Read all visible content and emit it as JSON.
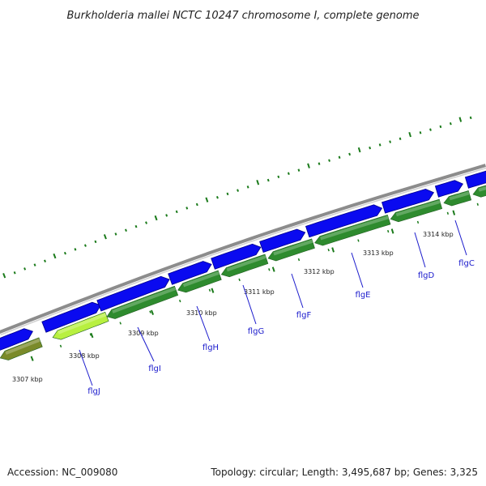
{
  "title": "Burkholderia mallei NCTC 10247 chromosome I, complete genome",
  "footer": {
    "accession": "Accession: NC_009080",
    "summary": "Topology: circular; Length: 3,495,687 bp; Genes: 3,325"
  },
  "colors": {
    "backbone": "#8c8c8c",
    "forward_gene": "#0a0af0",
    "forward_gene_dark": "#00008c",
    "reverse_gene": "#2e8b2e",
    "reverse_gene_light": "#5fbf3f",
    "highlight_gene": "#b8f040",
    "olive_gene": "#7a8a2a",
    "gene_label": "#1a1acc",
    "dotted_track": "#1a7a1a"
  },
  "scale_labels": [
    "3307 kbp",
    "3308 kbp",
    "3309 kbp",
    "3310 kbp",
    "3311 kbp",
    "3312 kbp",
    "3313 kbp",
    "3314 kbp"
  ],
  "gene_labels": [
    "flgJ",
    "flgI",
    "flgH",
    "flgG",
    "flgF",
    "flgE",
    "flgD",
    "flgC"
  ]
}
